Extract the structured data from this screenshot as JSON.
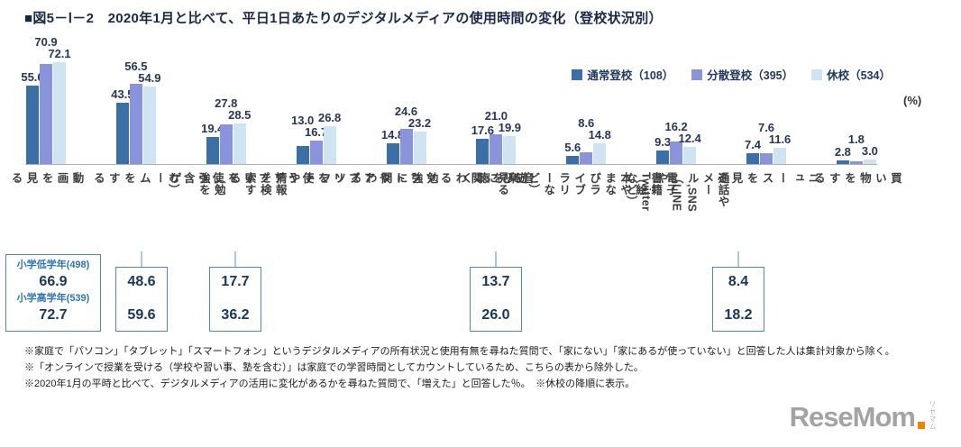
{
  "title": "■図5－Ⅰ－2　2020年1月と比べて、平日1日あたりのデジタルメディアの使用時間の変化（登校状況別）",
  "unit_label": "(%)",
  "chart_data": {
    "type": "bar",
    "title": "2020年1月と比べて、平日1日あたりのデジタルメディアの使用時間の変化（登校状況別）",
    "xlabel": "",
    "ylabel": "%",
    "ylim": [
      0,
      75
    ],
    "grid": false,
    "legend_position": "top-right",
    "categories": [
      "動画を見る",
      "ゲームをする",
      "情報を検索する\n（勉強を含む）",
      "勉強に関わるソフトや\nアプリを使う",
      "遊びに関わるソフトや\nアプリを使う",
      "音楽を聴く",
      "電子書籍（絵本や\nまなびライブラリーなど）を\n見る",
      "通話やメール,SNS\n（LINEやTwitterなど）",
      "ニュースを見る",
      "買い物をする"
    ],
    "series": [
      {
        "name": "通常登校（108）",
        "color": "#3a6fa7",
        "values": [
          55.6,
          43.5,
          19.4,
          13.0,
          14.8,
          17.6,
          5.6,
          9.3,
          7.4,
          2.8
        ]
      },
      {
        "name": "分散登校（395）",
        "color": "#8a94dc",
        "values": [
          70.9,
          56.5,
          27.8,
          16.7,
          24.6,
          21.0,
          8.6,
          16.2,
          7.6,
          1.8
        ]
      },
      {
        "name": "休校（534）",
        "color": "#cfe4f2",
        "values": [
          72.1,
          54.9,
          28.5,
          26.8,
          23.2,
          19.9,
          14.8,
          12.4,
          11.6,
          3.0
        ]
      }
    ],
    "annotations": [
      {
        "category_index": 0,
        "offset_x": 8,
        "rows": [
          {
            "label": "小学低学年(498)",
            "value": "66.9"
          },
          {
            "label": "小学高学年(539)",
            "value": "72.7"
          }
        ]
      },
      {
        "category_index": 1,
        "offset_x": 6,
        "rows": [
          {
            "value": "48.6"
          },
          {
            "value": "59.6"
          }
        ]
      },
      {
        "category_index": 2,
        "offset_x": 10,
        "rows": [
          {
            "value": "17.7"
          },
          {
            "value": "36.2"
          }
        ]
      },
      {
        "category_index": 5,
        "offset_x": 0,
        "rows": [
          {
            "value": "13.7"
          },
          {
            "value": "26.0"
          }
        ]
      },
      {
        "category_index": 7,
        "offset_x": 69,
        "rows": [
          {
            "value": "8.4"
          },
          {
            "value": "18.2"
          }
        ]
      }
    ]
  },
  "footnotes": [
    "※家庭で「パソコン」「タブレット」「スマートフォン」というデジタルメディアの所有状況と使用有無を尋ねた質問で、「家にない」「家にあるが使っていない」と回答した人は集計対象から除く。",
    "※「オンラインで授業を受ける（学校や習い事、塾を含む）」は家庭での学習時間としてカウントしているため、こちらの表から除外した。",
    "※2020年1月の平時と比べて、デジタルメディアの活用に変化があるかを尋ねた質問で、「増えた」と回答した％。　※休校の降順に表示。"
  ],
  "logo": {
    "text": "ReseMom",
    "sub": "リセマム"
  }
}
